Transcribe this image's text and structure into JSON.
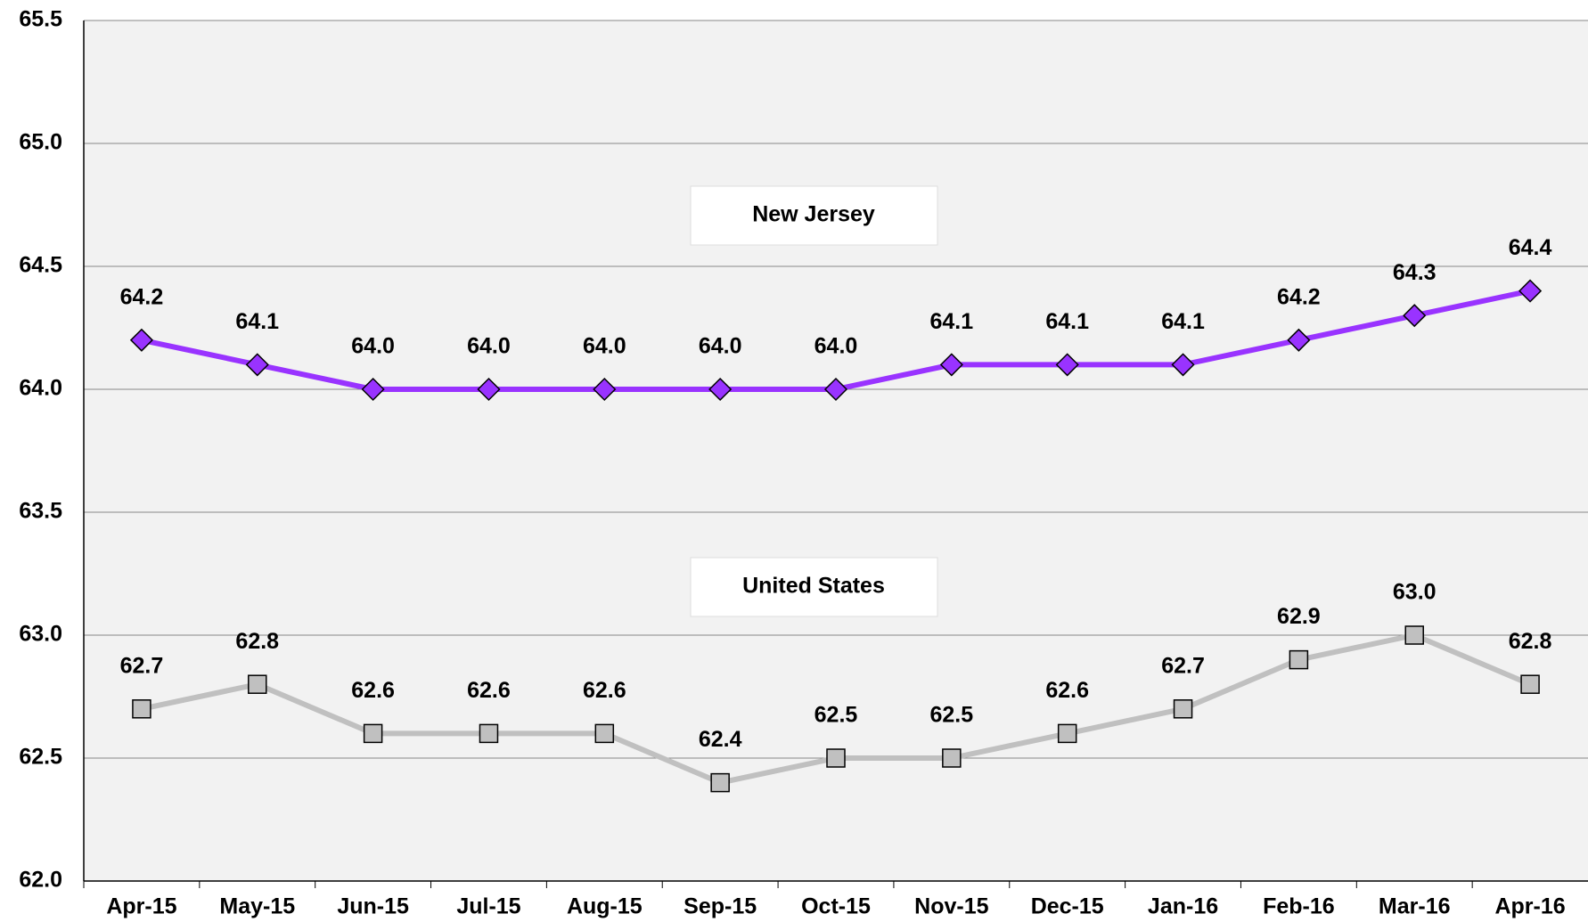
{
  "chart_data": {
    "type": "line",
    "categories": [
      "Apr-15",
      "May-15",
      "Jun-15",
      "Jul-15",
      "Aug-15",
      "Sep-15",
      "Oct-15",
      "Nov-15",
      "Dec-15",
      "Jan-16",
      "Feb-16",
      "Mar-16",
      "Apr-16"
    ],
    "series": [
      {
        "name": "New Jersey",
        "color": "#9933ff",
        "marker": "diamond",
        "values": [
          64.2,
          64.1,
          64,
          64,
          64,
          64,
          64,
          64.1,
          64.1,
          64.1,
          64.2,
          64.3,
          64.4
        ],
        "value_labels": [
          "64.2",
          "64.1",
          "64.0",
          "64.0",
          "64.0",
          "64.0",
          "64.0",
          "64.1",
          "64.1",
          "64.1",
          "64.2",
          "64.3",
          "64.4"
        ]
      },
      {
        "name": "United States",
        "color": "#c0c0c0",
        "marker": "square",
        "values": [
          62.7,
          62.8,
          62.6,
          62.6,
          62.6,
          62.4,
          62.5,
          62.5,
          62.6,
          62.7,
          62.9,
          63,
          62.8
        ],
        "value_labels": [
          "62.7",
          "62.8",
          "62.6",
          "62.6",
          "62.6",
          "62.4",
          "62.5",
          "62.5",
          "62.6",
          "62.7",
          "62.9",
          "63.0",
          "62.8"
        ]
      }
    ],
    "ylim": [
      62,
      65.5
    ],
    "yticks": [
      {
        "value": 62,
        "label": "62.0"
      },
      62.5,
      {
        "value": 63,
        "label": "63.0"
      },
      63.5,
      {
        "value": 64,
        "label": "64.0"
      },
      64.5,
      {
        "value": 65,
        "label": "65.0"
      },
      65.5
    ],
    "grid": true
  }
}
